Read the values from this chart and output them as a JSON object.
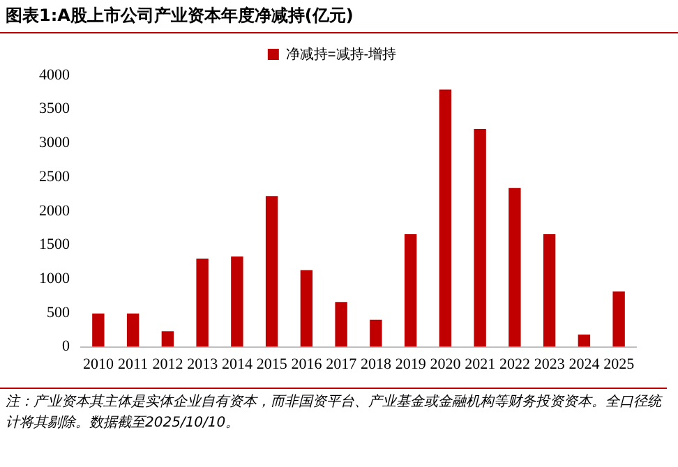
{
  "chart_data": {
    "type": "bar",
    "title": "图表1:A股上市公司产业资本年度净减持(亿元)",
    "categories": [
      "2010",
      "2011",
      "2012",
      "2013",
      "2014",
      "2015",
      "2016",
      "2017",
      "2018",
      "2019",
      "2020",
      "2021",
      "2022",
      "2023",
      "2024",
      "2025"
    ],
    "series": [
      {
        "name": "净减持=减持-增持",
        "color": "#c00000",
        "values": [
          490,
          490,
          230,
          1300,
          1330,
          2220,
          1130,
          660,
          400,
          1660,
          3790,
          3210,
          2340,
          1660,
          180,
          815
        ]
      }
    ],
    "ylim": [
      0,
      4000
    ],
    "yticks": [
      0,
      500,
      1000,
      1500,
      2000,
      2500,
      3000,
      3500,
      4000
    ],
    "grid": false,
    "legend": "top",
    "annotations": [
      "注：产业资本其主体是实体企业自有资本，而非国资平台、产业基金或金融机构等财务投资资本。全口径统计将其剔除。数据截至2025/10/10。"
    ]
  }
}
